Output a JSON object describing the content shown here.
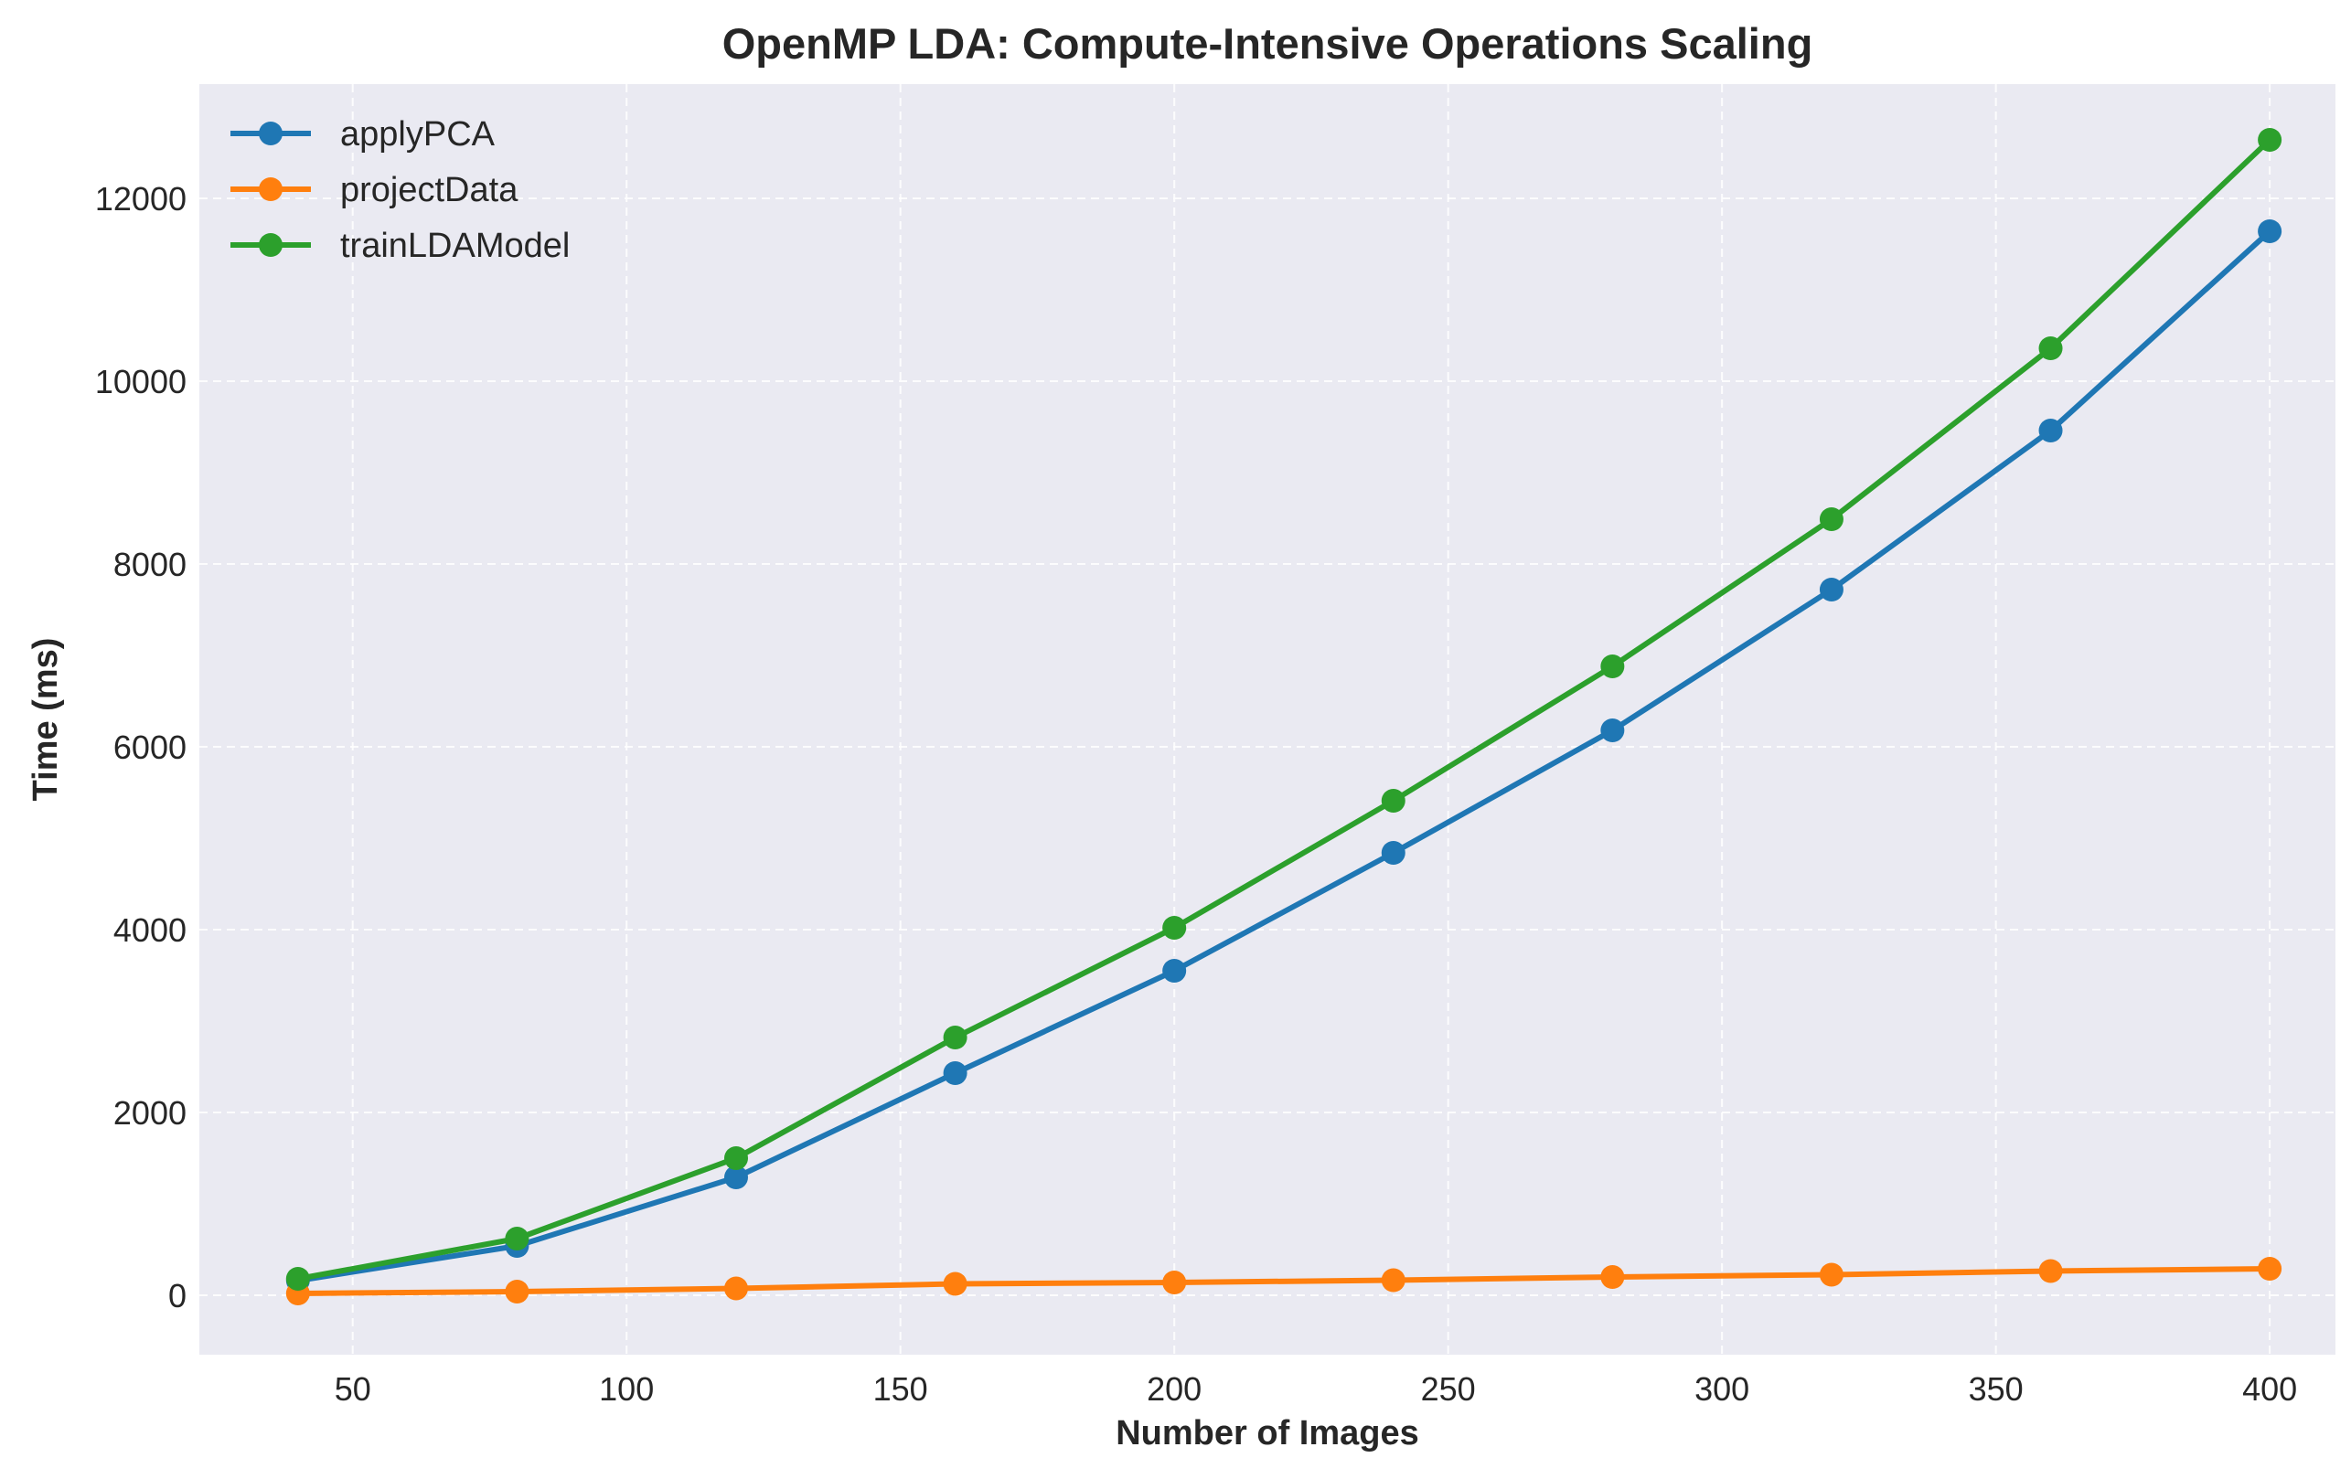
{
  "chart_data": {
    "type": "line",
    "title": "OpenMP LDA: Compute-Intensive Operations Scaling",
    "xlabel": "Number of Images",
    "ylabel": "Time (ms)",
    "x": [
      40,
      80,
      120,
      160,
      200,
      240,
      280,
      320,
      360,
      400
    ],
    "xlim": [
      22,
      412
    ],
    "ylim": [
      -650,
      13250
    ],
    "xticks": [
      50,
      100,
      150,
      200,
      250,
      300,
      350,
      400
    ],
    "yticks": [
      0,
      2000,
      4000,
      6000,
      8000,
      10000,
      12000
    ],
    "grid": true,
    "legend_position": "upper-left",
    "background_color": "#eaeaf2",
    "series": [
      {
        "name": "applyPCA",
        "color": "#1f77b4",
        "values": [
          160,
          540,
          1290,
          2430,
          3550,
          4840,
          6180,
          7720,
          9460,
          11640
        ]
      },
      {
        "name": "projectData",
        "color": "#ff7f0e",
        "values": [
          20,
          40,
          75,
          125,
          140,
          165,
          200,
          225,
          265,
          290
        ]
      },
      {
        "name": "trainLDAModel",
        "color": "#2ca02c",
        "values": [
          180,
          620,
          1500,
          2820,
          4020,
          5410,
          6880,
          8490,
          10360,
          12640
        ]
      }
    ]
  }
}
